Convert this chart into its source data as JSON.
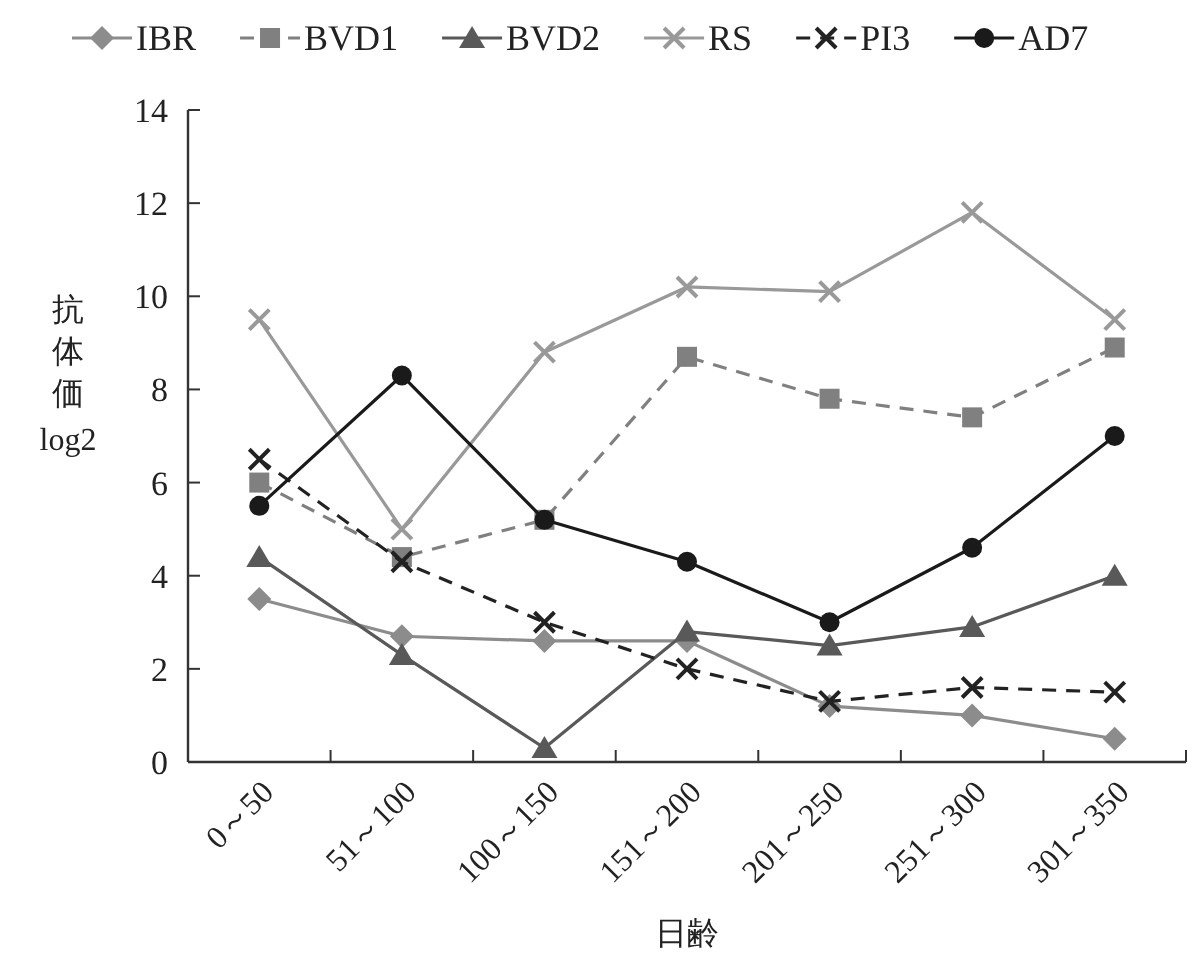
{
  "chart_data": {
    "type": "line",
    "xlabel": "日齢",
    "ylabel": "抗体価 log2",
    "categories": [
      "0～50",
      "51～100",
      "100～150",
      "151～200",
      "201～250",
      "251～300",
      "301～350"
    ],
    "ylim": [
      0,
      14
    ],
    "yticks": [
      0,
      2,
      4,
      6,
      8,
      10,
      12,
      14
    ],
    "legend": "top",
    "grid": false,
    "series": [
      {
        "name": "IBR",
        "color": "#8c8c8c",
        "marker": "diamond",
        "line_style": "solid",
        "values": [
          3.5,
          2.7,
          2.6,
          2.6,
          1.2,
          1.0,
          0.5
        ]
      },
      {
        "name": "BVD1",
        "color": "#808080",
        "marker": "square",
        "line_style": "dashed",
        "values": [
          6.0,
          4.4,
          5.2,
          8.7,
          7.8,
          7.4,
          8.9
        ]
      },
      {
        "name": "BVD2",
        "color": "#595959",
        "marker": "triangle",
        "line_style": "solid",
        "values": [
          4.4,
          2.3,
          0.3,
          2.8,
          2.5,
          2.9,
          4.0
        ]
      },
      {
        "name": "RS",
        "color": "#999999",
        "marker": "cross",
        "line_style": "solid",
        "values": [
          9.5,
          5.0,
          8.8,
          10.2,
          10.1,
          11.8,
          9.5
        ]
      },
      {
        "name": "PI3",
        "color": "#222222",
        "marker": "cross",
        "line_style": "dashed",
        "values": [
          6.5,
          4.3,
          3.0,
          2.0,
          1.3,
          1.6,
          1.5
        ]
      },
      {
        "name": "AD7",
        "color": "#1a1a1a",
        "marker": "circle",
        "line_style": "solid",
        "values": [
          5.5,
          8.3,
          5.2,
          4.3,
          3.0,
          4.6,
          7.0
        ]
      }
    ]
  }
}
